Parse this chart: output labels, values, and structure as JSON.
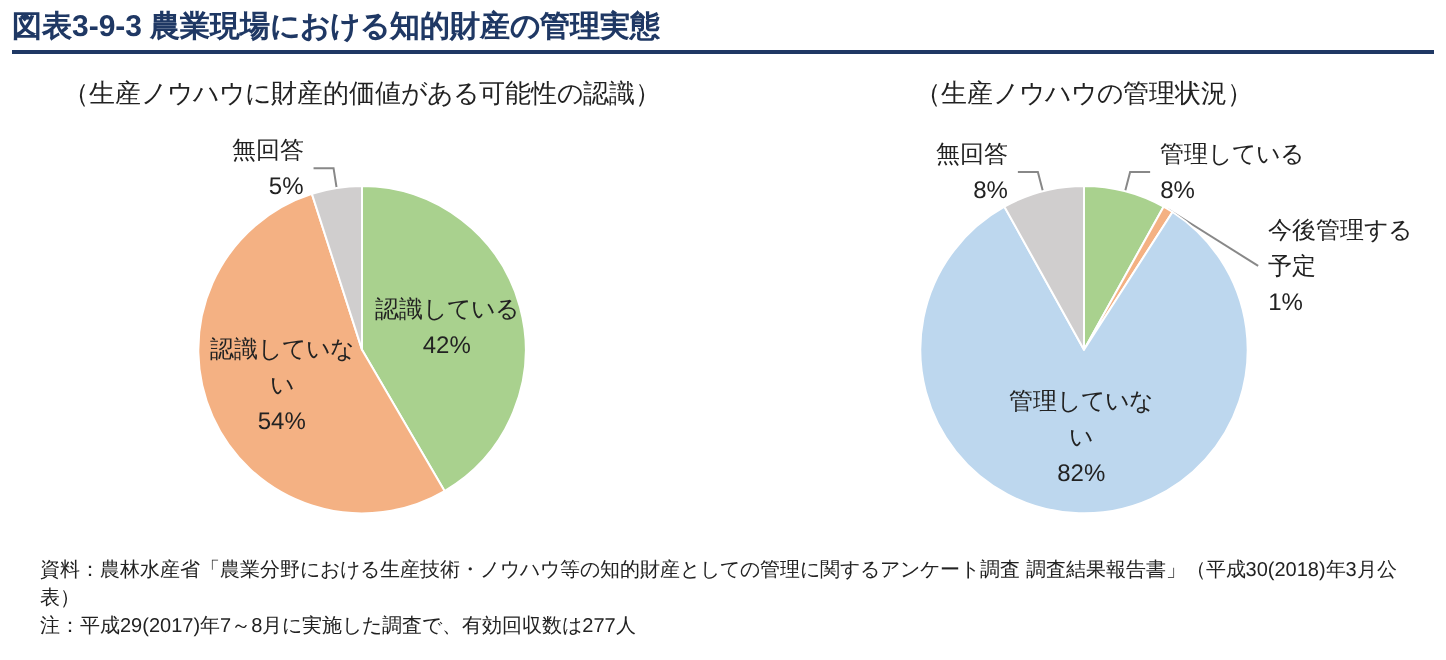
{
  "chart_data": [
    {
      "type": "pie",
      "title": "図表3-9-3 農業現場における知的財産の管理実態",
      "subtitle": "（生産ノウハウに財産的価値がある可能性の認識）",
      "categories": [
        "認識している",
        "認識していない",
        "無回答"
      ],
      "values": [
        42,
        54,
        5
      ],
      "value_labels": [
        "42%",
        "54%",
        "5%"
      ],
      "colors": [
        "#a9d18e",
        "#f4b183",
        "#d0cece"
      ],
      "legend": false
    },
    {
      "type": "pie",
      "subtitle": "（生産ノウハウの管理状況）",
      "categories": [
        "管理している",
        "今後管理する予定",
        "管理していない",
        "無回答"
      ],
      "values": [
        8,
        1,
        82,
        8
      ],
      "value_labels": [
        "8%",
        "1%",
        "82%",
        "8%"
      ],
      "colors": [
        "#a9d18e",
        "#f4b183",
        "#bdd7ee",
        "#d0cece"
      ],
      "legend": false,
      "annotations": [
        "資料：農林水産省「農業分野における生産技術・ノウハウ等の知的財産としての管理に関するアンケート調査 調査結果報告書」（平成30(2018)年3月公表）",
        "注：平成29(2017)年7～8月に実施した調査で、有効回収数は277人"
      ]
    }
  ]
}
